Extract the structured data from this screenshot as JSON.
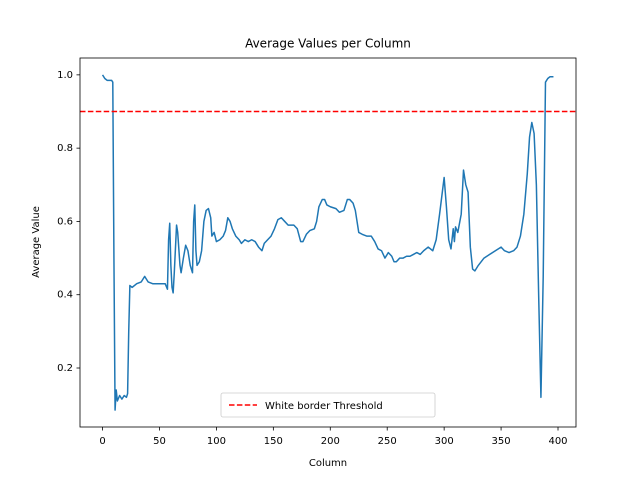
{
  "chart_data": {
    "type": "line",
    "title": "Average Values per Column",
    "x_label": "Column",
    "y_label": "Average Value",
    "xlim": [
      -19.8,
      415.8
    ],
    "ylim": [
      0.039,
      1.046
    ],
    "xticks": [
      0,
      50,
      100,
      150,
      200,
      250,
      300,
      350,
      400
    ],
    "yticks": [
      0.2,
      0.4,
      0.6,
      0.8,
      {
        "value": 1,
        "label": "1.0"
      }
    ],
    "legend": "lower center",
    "threshold": {
      "name": "White border Threshold",
      "value": 0.9,
      "color": "#ff0000"
    },
    "series": [
      {
        "color": "#1f77b4",
        "x": [
          0,
          2,
          4,
          8,
          9,
          10,
          11,
          12,
          13,
          15,
          17,
          19,
          21,
          22,
          23,
          24,
          26,
          30,
          34,
          37,
          40,
          44,
          50,
          55,
          57,
          58,
          59,
          60,
          61,
          62,
          63,
          65,
          66,
          68,
          69,
          71,
          73,
          75,
          77,
          79,
          80,
          81,
          82,
          83,
          85,
          87,
          89,
          91,
          93,
          95,
          96,
          98,
          100,
          103,
          106,
          108,
          110,
          112,
          114,
          117,
          120,
          122,
          125,
          128,
          131,
          134,
          137,
          140,
          142,
          145,
          148,
          151,
          154,
          157,
          160,
          163,
          168,
          171,
          174,
          176,
          179,
          182,
          186,
          188,
          190,
          193,
          195,
          197,
          200,
          205,
          208,
          212,
          215,
          217,
          220,
          222,
          225,
          228,
          232,
          236,
          239,
          242,
          245,
          248,
          251,
          254,
          256,
          258,
          261,
          264,
          267,
          270,
          273,
          276,
          279,
          282,
          286,
          290,
          293,
          296,
          298,
          300,
          302,
          304,
          306,
          308,
          309,
          310,
          312,
          315,
          317,
          319,
          321,
          323,
          325,
          327,
          330,
          335,
          340,
          345,
          350,
          353,
          357,
          361,
          364,
          367,
          370,
          373,
          375,
          377,
          379,
          381,
          383,
          385,
          387,
          389,
          391,
          393,
          396
        ],
        "values": [
          1.0,
          0.99,
          0.985,
          0.985,
          0.98,
          0.5,
          0.085,
          0.14,
          0.11,
          0.125,
          0.115,
          0.125,
          0.12,
          0.13,
          0.3,
          0.425,
          0.42,
          0.43,
          0.435,
          0.45,
          0.435,
          0.43,
          0.43,
          0.43,
          0.415,
          0.55,
          0.595,
          0.48,
          0.42,
          0.405,
          0.46,
          0.59,
          0.57,
          0.48,
          0.46,
          0.5,
          0.535,
          0.52,
          0.48,
          0.46,
          0.6,
          0.645,
          0.52,
          0.48,
          0.49,
          0.52,
          0.6,
          0.63,
          0.635,
          0.61,
          0.56,
          0.57,
          0.545,
          0.55,
          0.56,
          0.575,
          0.61,
          0.6,
          0.58,
          0.56,
          0.55,
          0.54,
          0.55,
          0.545,
          0.55,
          0.545,
          0.53,
          0.52,
          0.54,
          0.55,
          0.56,
          0.58,
          0.605,
          0.61,
          0.6,
          0.59,
          0.59,
          0.58,
          0.545,
          0.545,
          0.565,
          0.575,
          0.58,
          0.6,
          0.64,
          0.66,
          0.66,
          0.645,
          0.64,
          0.635,
          0.625,
          0.63,
          0.66,
          0.66,
          0.65,
          0.63,
          0.57,
          0.565,
          0.56,
          0.56,
          0.545,
          0.525,
          0.52,
          0.5,
          0.515,
          0.505,
          0.49,
          0.49,
          0.5,
          0.5,
          0.505,
          0.505,
          0.51,
          0.515,
          0.51,
          0.52,
          0.53,
          0.52,
          0.55,
          0.62,
          0.67,
          0.72,
          0.64,
          0.55,
          0.525,
          0.58,
          0.545,
          0.585,
          0.57,
          0.62,
          0.74,
          0.7,
          0.68,
          0.53,
          0.47,
          0.465,
          0.48,
          0.5,
          0.51,
          0.52,
          0.53,
          0.52,
          0.515,
          0.52,
          0.53,
          0.56,
          0.62,
          0.73,
          0.83,
          0.87,
          0.84,
          0.7,
          0.4,
          0.12,
          0.45,
          0.98,
          0.99,
          0.995,
          0.995
        ]
      }
    ]
  }
}
